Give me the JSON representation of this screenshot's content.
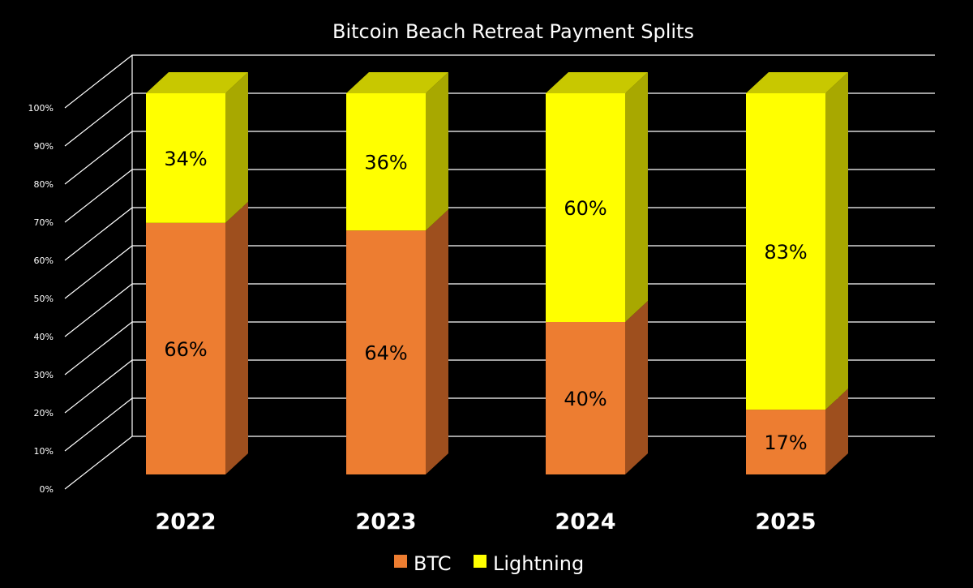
{
  "chart_data": {
    "type": "bar",
    "stacked": true,
    "three_d": true,
    "title": "Bitcoin Beach Retreat Payment Splits",
    "categories": [
      "2022",
      "2023",
      "2024",
      "2025"
    ],
    "series": [
      {
        "name": "BTC",
        "values": [
          66,
          64,
          40,
          17
        ],
        "labels": [
          "66%",
          "64%",
          "40%",
          "17%"
        ]
      },
      {
        "name": "Lightning",
        "values": [
          34,
          36,
          60,
          83
        ],
        "labels": [
          "34%",
          "36%",
          "60%",
          "83%"
        ]
      }
    ],
    "yticks": [
      "0%",
      "10%",
      "20%",
      "30%",
      "40%",
      "50%",
      "60%",
      "70%",
      "80%",
      "90%",
      "100%"
    ],
    "ylim": [
      0,
      100
    ],
    "grid": true,
    "legend_position": "bottom",
    "colors": {
      "background": "#000000",
      "btc_front": "#ED7D31",
      "btc_side": "#9E4F1E",
      "lightning_front": "#FFFF00",
      "lightning_side": "#A8A800",
      "lightning_top": "#C8C800",
      "grid": "#FFFFFF",
      "text": "#FFFFFF"
    }
  }
}
